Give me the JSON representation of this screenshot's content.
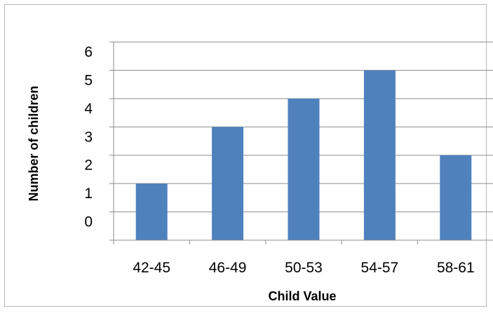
{
  "chart_data": {
    "type": "bar",
    "title": "",
    "xlabel": "Child Value",
    "ylabel": "Number of children",
    "categories": [
      "42-45",
      "46-49",
      "50-53",
      "54-57",
      "58-61"
    ],
    "values": [
      1,
      3,
      4,
      5,
      2
    ],
    "ylim": [
      -1,
      6
    ],
    "y_tick_labels": [
      "0",
      "1",
      "2",
      "3",
      "4",
      "5",
      "6"
    ],
    "grid": true,
    "legend": "none",
    "bar_color": "#4f81bd"
  }
}
